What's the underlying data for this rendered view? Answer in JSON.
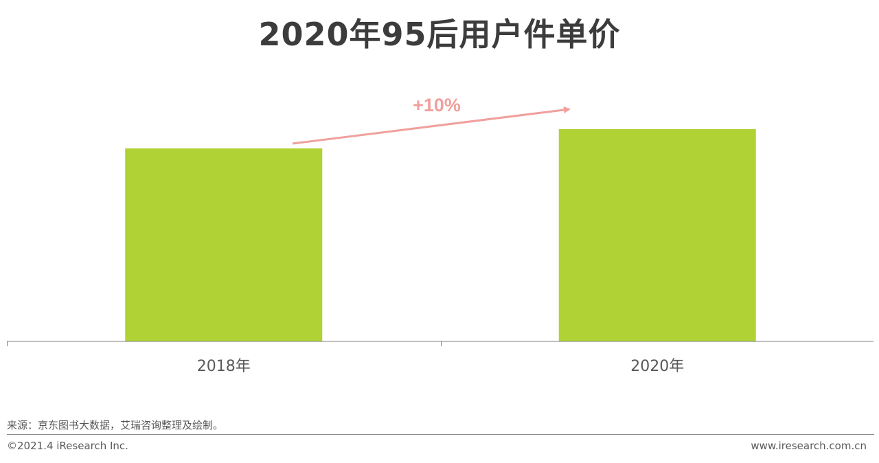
{
  "chart_data": {
    "type": "bar",
    "title": "2020年95后用户件单价",
    "categories": [
      "2018年",
      "2020年"
    ],
    "values": [
      100,
      110
    ],
    "ylim": [
      0,
      110
    ],
    "xlabel": "",
    "ylabel": "",
    "grid": false,
    "annotation": "+10%",
    "colors": {
      "bar": "#b0d234",
      "arrow": "#f0a09c",
      "axis": "#7f7f7f",
      "tick_label": "#595959"
    }
  },
  "footer": {
    "source": "来源：京东图书大数据，艾瑞咨询整理及绘制。",
    "copyright": "©2021.4 iResearch Inc.",
    "website": "www.iresearch.com.cn"
  }
}
